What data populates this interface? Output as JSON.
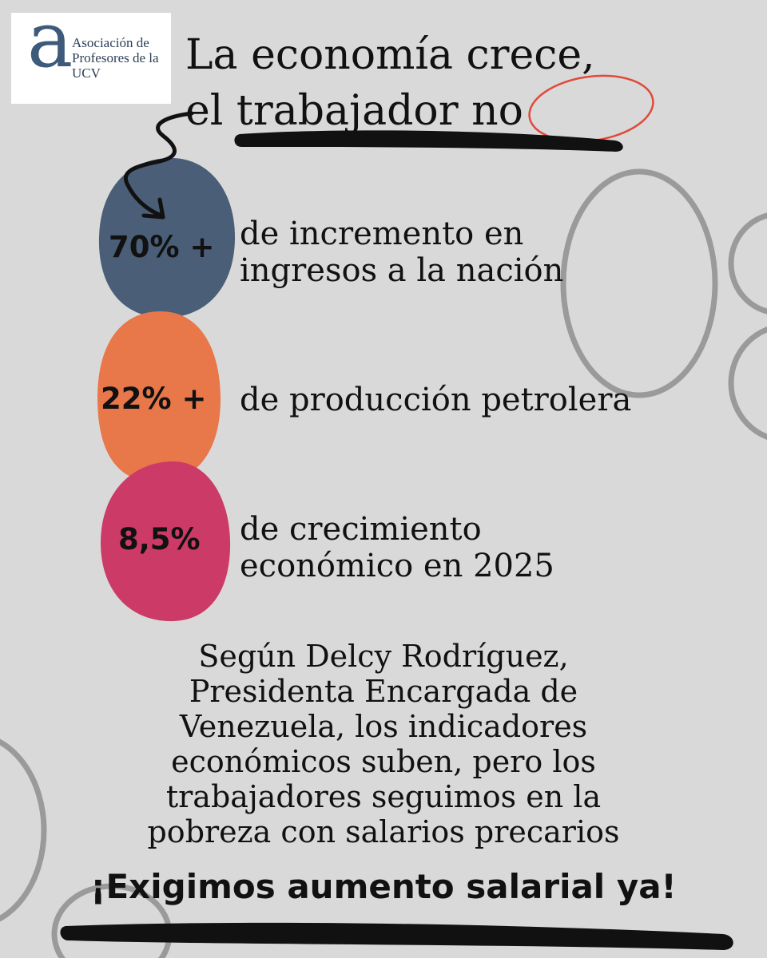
{
  "logo": {
    "letter": "a",
    "lines": [
      "Asociación de",
      "Profesores de la",
      "UCV"
    ]
  },
  "title": {
    "line1": "La economía crece,",
    "line2": "el trabajador no"
  },
  "stats": [
    {
      "value": "70% +",
      "description": [
        "de incremento en",
        "ingresos a la nación"
      ],
      "color": "#4a5e78"
    },
    {
      "value": "22% +",
      "description": [
        "de producción petrolera"
      ],
      "color": "#e8774a"
    },
    {
      "value": "8,5%",
      "description": [
        "de crecimiento",
        "económico en 2025"
      ],
      "color": "#cc3a67"
    }
  ],
  "body": {
    "lines": [
      "Según Delcy Rodríguez,",
      "Presidenta Encargada de",
      "Venezuela, los indicadores",
      "económicos suben, pero los",
      "trabajadores seguimos en la",
      "pobreza con salarios precarios"
    ]
  },
  "cta": "¡Exigimos aumento salarial ya!",
  "colors": {
    "background": "#d9d9d9",
    "accent_red": "#e04a3a",
    "circle_outline": "#999999"
  }
}
